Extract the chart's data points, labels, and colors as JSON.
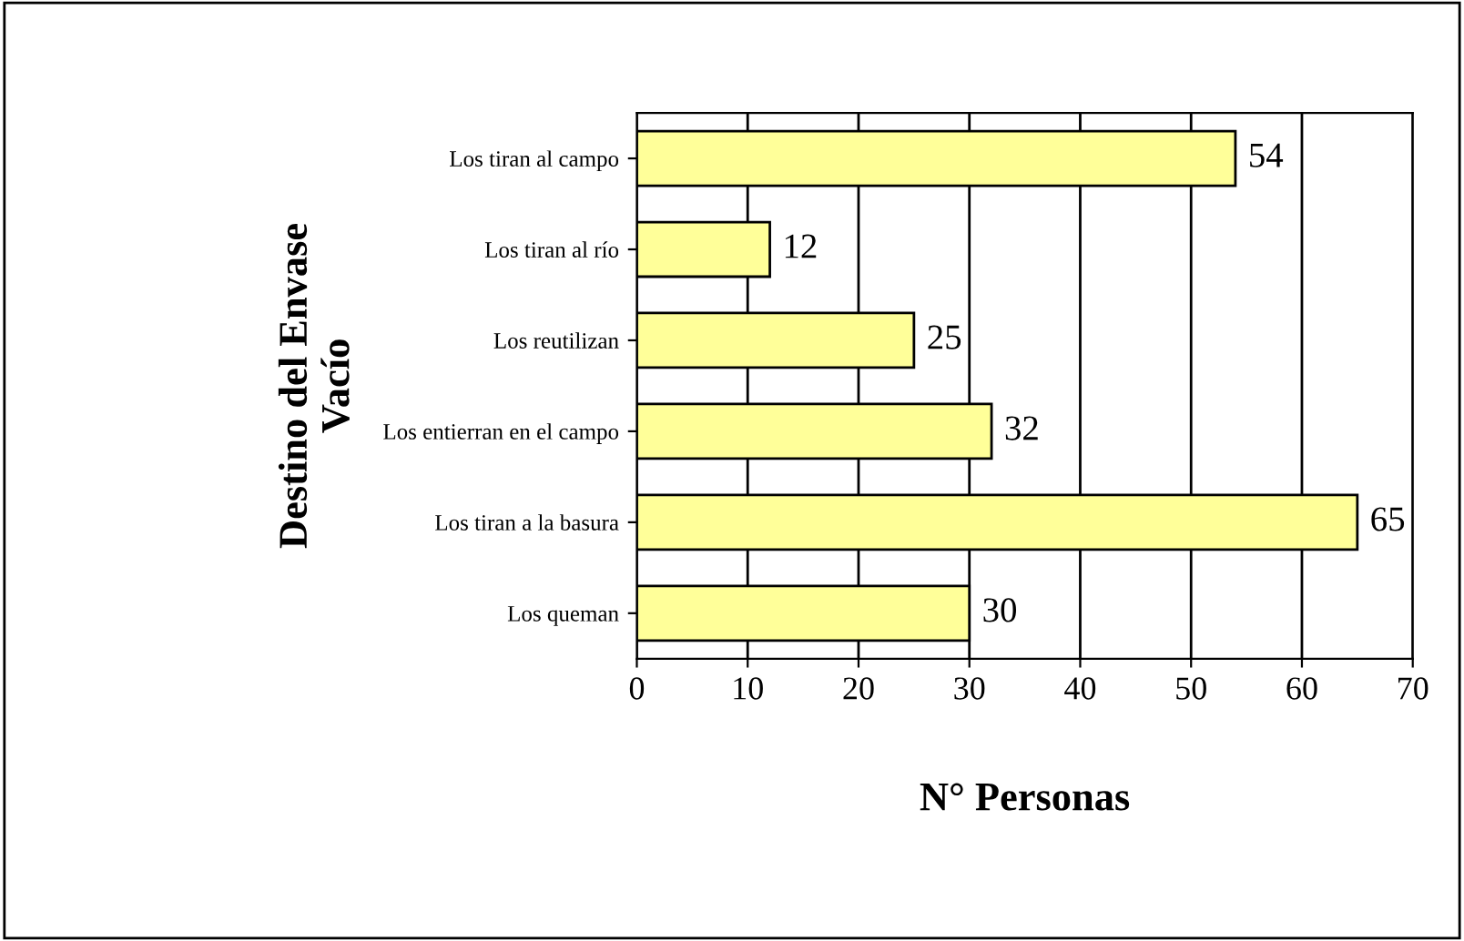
{
  "chart_data": {
    "type": "bar",
    "orientation": "horizontal",
    "categories": [
      "Los tiran al campo",
      "Los tiran al río",
      "Los reutilizan",
      "Los entierran en el campo",
      "Los tiran a la basura",
      "Los queman"
    ],
    "values": [
      54,
      12,
      25,
      32,
      65,
      30
    ],
    "color": "#ffff99",
    "xlabel": "N° Personas",
    "ylabel": "Destino del Envase\nVacío",
    "xlim": [
      0,
      70
    ],
    "xticks": [
      0,
      10,
      20,
      30,
      40,
      50,
      60,
      70
    ],
    "grid": "x",
    "data_labels": true,
    "legend": false
  }
}
